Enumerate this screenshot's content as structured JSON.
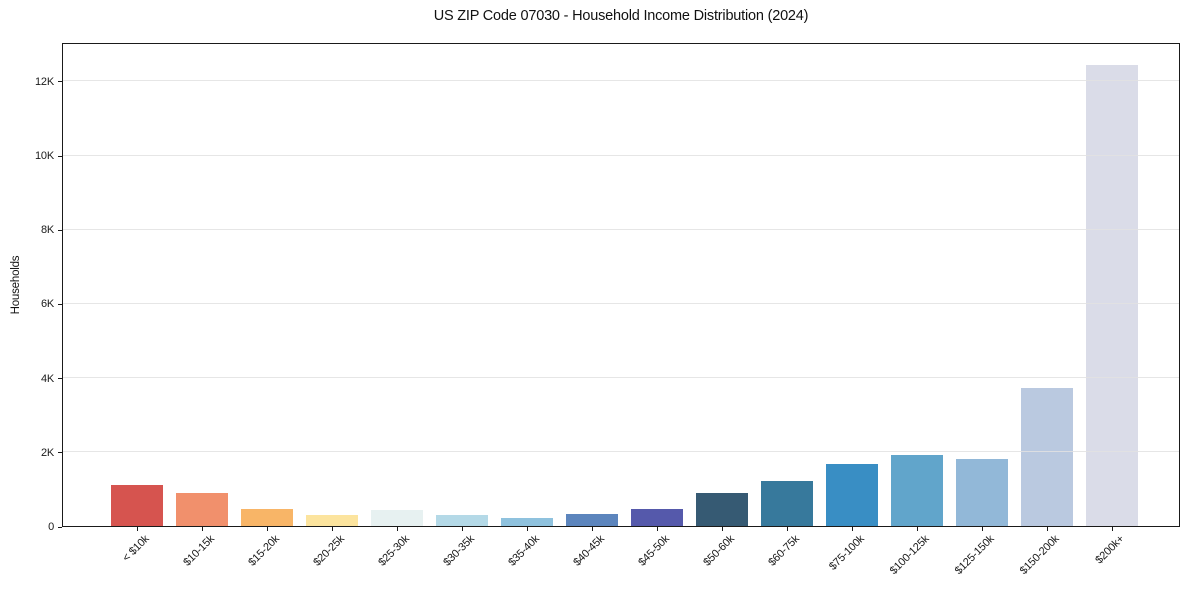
{
  "figure": {
    "title": "US ZIP Code 07030 - Household Income Distribution (2024)"
  },
  "chart_data": {
    "type": "bar",
    "title": "US ZIP Code 07030 - Household Income Distribution (2024)",
    "xlabel": "",
    "ylabel": "Households",
    "categories": [
      "< $10k",
      "$10-15k",
      "$15-20k",
      "$20-25k",
      "$25-30k",
      "$30-35k",
      "$35-40k",
      "$40-45k",
      "$45-50k",
      "$50-60k",
      "$60-75k",
      "$75-100k",
      "$100-125k",
      "$125-150k",
      "$150-200k",
      "$200k+"
    ],
    "values": [
      1100,
      890,
      470,
      310,
      440,
      310,
      220,
      330,
      450,
      900,
      1210,
      1670,
      1910,
      1820,
      3710,
      12430
    ],
    "bar_colors": [
      "#d6544f",
      "#f1906c",
      "#f8b567",
      "#fce49e",
      "#e7f1f1",
      "#b4d9e7",
      "#8fc2de",
      "#5c85bd",
      "#5559ab",
      "#365a73",
      "#37799c",
      "#398ec4",
      "#61a5cb",
      "#92b8d8",
      "#bac9e0",
      "#dadce8"
    ],
    "ylim": [
      0,
      13050
    ],
    "yticks": {
      "values": [
        0,
        2000,
        4000,
        6000,
        8000,
        10000,
        12000
      ],
      "labels": [
        "0",
        "2K",
        "4K",
        "6K",
        "8K",
        "10K",
        "12K"
      ]
    },
    "grid": "horizontal",
    "legend": "none",
    "background_color": "#ffffff",
    "axis_color": "#1a1a1a"
  }
}
